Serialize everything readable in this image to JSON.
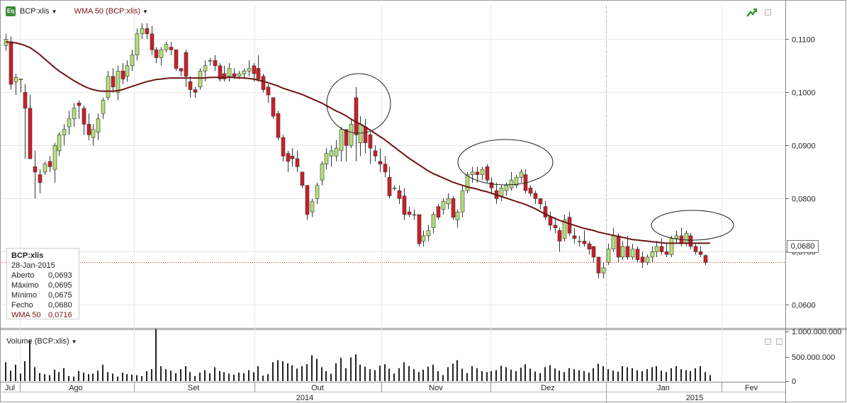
{
  "header": {
    "symbol_label": "BCP:xlis",
    "indicator_label": "WMA 50 (BCP:xlis)",
    "eq_icon_text": "Eq"
  },
  "tooltip": {
    "title": "BCP:xlis",
    "date": "28-Jan-2015",
    "rows": [
      {
        "k": "Aberto",
        "v": "0,0693"
      },
      {
        "k": "Máximo",
        "v": "0,0695"
      },
      {
        "k": "Mínimo",
        "v": "0,0675"
      },
      {
        "k": "Fecho",
        "v": "0,0680"
      },
      {
        "k": "WMA 50",
        "v": "0,0716"
      }
    ]
  },
  "volume_label": "Volume (BCP:xlis)",
  "last_price_label": "0,0680",
  "colors": {
    "up": "#b5e07a",
    "down": "#cc1f26",
    "wma": "#6e1414",
    "grid": "#e6e6e6",
    "last_line": "#cc3333"
  },
  "chart_data": {
    "type": "candlestick",
    "y_ticks": [
      "0,1100",
      "0,1000",
      "0,0900",
      "0,0800",
      "0,0700",
      "0,0600"
    ],
    "ylim": [
      0.0558,
      0.1163
    ],
    "volume_ticks": [
      "1.000.000.000",
      "500.000.000",
      "0"
    ],
    "volume_max": 1000000000,
    "month_labels": [
      "Jul",
      "Ago",
      "Set",
      "Out",
      "Nov",
      "Dez",
      "Jan",
      "Fev"
    ],
    "year_labels": [
      "2014",
      "2015"
    ],
    "last_price": 0.068,
    "candles": [
      [
        0.1088,
        0.111,
        0.1078,
        0.11
      ],
      [
        0.1095,
        0.1105,
        0.1005,
        0.1015
      ],
      [
        0.102,
        0.1035,
        0.0995,
        0.1028
      ],
      [
        0.1025,
        0.1025,
        0.1,
        0.1025
      ],
      [
        0.1,
        0.1015,
        0.0875,
        0.097
      ],
      [
        0.097,
        0.0995,
        0.088,
        0.0875
      ],
      [
        0.086,
        0.089,
        0.08,
        0.085
      ],
      [
        0.0845,
        0.0855,
        0.081,
        0.083
      ],
      [
        0.085,
        0.087,
        0.0845,
        0.0865
      ],
      [
        0.087,
        0.088,
        0.085,
        0.086
      ],
      [
        0.0855,
        0.0905,
        0.083,
        0.09
      ],
      [
        0.089,
        0.0925,
        0.088,
        0.092
      ],
      [
        0.092,
        0.094,
        0.09,
        0.093
      ],
      [
        0.0935,
        0.0965,
        0.092,
        0.095
      ],
      [
        0.095,
        0.098,
        0.0935,
        0.097
      ],
      [
        0.098,
        0.0985,
        0.095,
        0.0975
      ],
      [
        0.097,
        0.0975,
        0.092,
        0.094
      ],
      [
        0.094,
        0.096,
        0.091,
        0.092
      ],
      [
        0.0915,
        0.094,
        0.09,
        0.093
      ],
      [
        0.0925,
        0.096,
        0.091,
        0.095
      ],
      [
        0.096,
        0.099,
        0.095,
        0.0985
      ],
      [
        0.099,
        0.104,
        0.0985,
        0.103
      ],
      [
        0.103,
        0.1045,
        0.1,
        0.101
      ],
      [
        0.1,
        0.105,
        0.0985,
        0.104
      ],
      [
        0.104,
        0.1055,
        0.1015,
        0.1025
      ],
      [
        0.103,
        0.106,
        0.102,
        0.105
      ],
      [
        0.105,
        0.108,
        0.104,
        0.107
      ],
      [
        0.107,
        0.112,
        0.106,
        0.111
      ],
      [
        0.111,
        0.113,
        0.11,
        0.112
      ],
      [
        0.112,
        0.113,
        0.11,
        0.111
      ],
      [
        0.111,
        0.1125,
        0.107,
        0.108
      ],
      [
        0.108,
        0.1085,
        0.1055,
        0.1065
      ],
      [
        0.1065,
        0.1085,
        0.105,
        0.108
      ],
      [
        0.108,
        0.1095,
        0.1075,
        0.109
      ],
      [
        0.1085,
        0.1095,
        0.107,
        0.108
      ],
      [
        0.108,
        0.108,
        0.104,
        0.1045
      ],
      [
        0.1045,
        0.1045,
        0.103,
        0.104
      ],
      [
        0.1075,
        0.108,
        0.101,
        0.103
      ],
      [
        0.102,
        0.103,
        0.099,
        0.1005
      ],
      [
        0.1005,
        0.101,
        0.099,
        0.1
      ],
      [
        0.101,
        0.1045,
        0.1005,
        0.104
      ],
      [
        0.104,
        0.106,
        0.102,
        0.105
      ],
      [
        0.106,
        0.1065,
        0.105,
        0.106
      ],
      [
        0.106,
        0.107,
        0.104,
        0.105
      ],
      [
        0.105,
        0.1055,
        0.102,
        0.1025
      ],
      [
        0.1035,
        0.105,
        0.102,
        0.1025
      ],
      [
        0.103,
        0.1055,
        0.102,
        0.1045
      ],
      [
        0.1035,
        0.1045,
        0.1025,
        0.103
      ],
      [
        0.103,
        0.104,
        0.1025,
        0.1035
      ],
      [
        0.1035,
        0.1045,
        0.1025,
        0.104
      ],
      [
        0.104,
        0.106,
        0.103,
        0.1045
      ],
      [
        0.105,
        0.1055,
        0.102,
        0.1035
      ],
      [
        0.1045,
        0.107,
        0.102,
        0.1025
      ],
      [
        0.103,
        0.1035,
        0.1,
        0.1005
      ],
      [
        0.101,
        0.1015,
        0.098,
        0.0995
      ],
      [
        0.099,
        0.099,
        0.095,
        0.0955
      ],
      [
        0.096,
        0.0965,
        0.091,
        0.0915
      ],
      [
        0.0915,
        0.092,
        0.087,
        0.088
      ],
      [
        0.0885,
        0.089,
        0.085,
        0.087
      ],
      [
        0.088,
        0.0895,
        0.086,
        0.0875
      ],
      [
        0.0875,
        0.089,
        0.085,
        0.086
      ],
      [
        0.085,
        0.085,
        0.082,
        0.0825
      ],
      [
        0.0825,
        0.0825,
        0.076,
        0.077
      ],
      [
        0.0775,
        0.08,
        0.0765,
        0.0795
      ],
      [
        0.08,
        0.083,
        0.079,
        0.0825
      ],
      [
        0.0835,
        0.087,
        0.0825,
        0.0865
      ],
      [
        0.0865,
        0.0895,
        0.0855,
        0.0885
      ],
      [
        0.088,
        0.09,
        0.086,
        0.089
      ],
      [
        0.088,
        0.091,
        0.087,
        0.0895
      ],
      [
        0.089,
        0.0935,
        0.087,
        0.093
      ],
      [
        0.093,
        0.093,
        0.087,
        0.09
      ],
      [
        0.09,
        0.095,
        0.0895,
        0.094
      ],
      [
        0.099,
        0.101,
        0.087,
        0.092
      ],
      [
        0.0905,
        0.0955,
        0.088,
        0.094
      ],
      [
        0.0935,
        0.095,
        0.0885,
        0.0905
      ],
      [
        0.092,
        0.0925,
        0.0865,
        0.0895
      ],
      [
        0.089,
        0.09,
        0.087,
        0.088
      ],
      [
        0.087,
        0.0895,
        0.085,
        0.0865
      ],
      [
        0.0865,
        0.088,
        0.084,
        0.085
      ],
      [
        0.084,
        0.086,
        0.08,
        0.0805
      ],
      [
        0.082,
        0.0825,
        0.0815,
        0.082
      ],
      [
        0.0815,
        0.0825,
        0.079,
        0.08
      ],
      [
        0.0805,
        0.082,
        0.076,
        0.077
      ],
      [
        0.0775,
        0.0785,
        0.0765,
        0.077
      ],
      [
        0.077,
        0.078,
        0.076,
        0.077
      ],
      [
        0.077,
        0.077,
        0.071,
        0.0715
      ],
      [
        0.072,
        0.074,
        0.071,
        0.073
      ],
      [
        0.073,
        0.075,
        0.072,
        0.074
      ],
      [
        0.0745,
        0.0775,
        0.0735,
        0.077
      ],
      [
        0.0785,
        0.079,
        0.076,
        0.0765
      ],
      [
        0.078,
        0.08,
        0.077,
        0.0795
      ],
      [
        0.079,
        0.081,
        0.078,
        0.08
      ],
      [
        0.08,
        0.0805,
        0.076,
        0.0765
      ],
      [
        0.076,
        0.078,
        0.0745,
        0.0775
      ],
      [
        0.0775,
        0.0825,
        0.0765,
        0.0815
      ],
      [
        0.0815,
        0.085,
        0.081,
        0.0845
      ],
      [
        0.0845,
        0.086,
        0.083,
        0.085
      ],
      [
        0.085,
        0.086,
        0.083,
        0.0845
      ],
      [
        0.0845,
        0.086,
        0.0835,
        0.0855
      ],
      [
        0.086,
        0.0865,
        0.083,
        0.0835
      ],
      [
        0.083,
        0.084,
        0.081,
        0.082
      ],
      [
        0.0815,
        0.083,
        0.079,
        0.08
      ],
      [
        0.0805,
        0.0825,
        0.0795,
        0.082
      ],
      [
        0.0815,
        0.083,
        0.0805,
        0.0825
      ],
      [
        0.082,
        0.085,
        0.0815,
        0.0835
      ],
      [
        0.0825,
        0.0845,
        0.082,
        0.084
      ],
      [
        0.084,
        0.0855,
        0.083,
        0.085
      ],
      [
        0.0845,
        0.0855,
        0.081,
        0.0815
      ],
      [
        0.082,
        0.0825,
        0.0805,
        0.081
      ],
      [
        0.081,
        0.0815,
        0.079,
        0.08
      ],
      [
        0.08,
        0.08,
        0.078,
        0.079
      ],
      [
        0.0785,
        0.0795,
        0.076,
        0.0765
      ],
      [
        0.0765,
        0.0775,
        0.074,
        0.075
      ],
      [
        0.075,
        0.0765,
        0.0735,
        0.0745
      ],
      [
        0.074,
        0.0745,
        0.07,
        0.072
      ],
      [
        0.0725,
        0.077,
        0.072,
        0.076
      ],
      [
        0.0765,
        0.0775,
        0.073,
        0.0735
      ],
      [
        0.073,
        0.0745,
        0.0715,
        0.0725
      ],
      [
        0.072,
        0.073,
        0.071,
        0.072
      ],
      [
        0.072,
        0.074,
        0.071,
        0.0715
      ],
      [
        0.0715,
        0.072,
        0.0695,
        0.0705
      ],
      [
        0.071,
        0.071,
        0.068,
        0.069
      ],
      [
        0.069,
        0.069,
        0.065,
        0.066
      ],
      [
        0.066,
        0.068,
        0.065,
        0.067
      ],
      [
        0.068,
        0.0715,
        0.0675,
        0.0705
      ],
      [
        0.0705,
        0.0745,
        0.07,
        0.073
      ],
      [
        0.073,
        0.0735,
        0.068,
        0.069
      ],
      [
        0.069,
        0.072,
        0.0685,
        0.071
      ],
      [
        0.071,
        0.073,
        0.0685,
        0.069
      ],
      [
        0.069,
        0.0715,
        0.0685,
        0.0705
      ],
      [
        0.0705,
        0.071,
        0.068,
        0.0685
      ],
      [
        0.069,
        0.07,
        0.067,
        0.068
      ],
      [
        0.068,
        0.0695,
        0.0675,
        0.069
      ],
      [
        0.069,
        0.071,
        0.068,
        0.07
      ],
      [
        0.07,
        0.072,
        0.069,
        0.071
      ],
      [
        0.071,
        0.0725,
        0.0695,
        0.07
      ],
      [
        0.07,
        0.0715,
        0.069,
        0.0695
      ],
      [
        0.0695,
        0.073,
        0.069,
        0.0725
      ],
      [
        0.0725,
        0.074,
        0.0715,
        0.073
      ],
      [
        0.073,
        0.0745,
        0.071,
        0.0715
      ],
      [
        0.0715,
        0.074,
        0.071,
        0.0735
      ],
      [
        0.073,
        0.0735,
        0.0705,
        0.071
      ],
      [
        0.071,
        0.0715,
        0.0695,
        0.07
      ],
      [
        0.07,
        0.071,
        0.069,
        0.0695
      ],
      [
        0.0693,
        0.0695,
        0.0675,
        0.068
      ]
    ],
    "volumes": [
      380,
      210,
      330,
      150,
      400,
      820,
      280,
      160,
      140,
      120,
      230,
      180,
      260,
      100,
      90,
      200,
      170,
      140,
      150,
      210,
      330,
      180,
      150,
      90,
      170,
      140,
      130,
      120,
      100,
      200,
      240,
      1050,
      300,
      240,
      210,
      160,
      240,
      300,
      180,
      100,
      170,
      220,
      160,
      280,
      200,
      180,
      150,
      130,
      170,
      160,
      220,
      180,
      300,
      110,
      140,
      380,
      420,
      400,
      360,
      320,
      250,
      300,
      340,
      520,
      450,
      280,
      200,
      150,
      360,
      470,
      260,
      480,
      540,
      330,
      290,
      240,
      220,
      310,
      340,
      250,
      150,
      260,
      380,
      300,
      240,
      180,
      230,
      290,
      330,
      200,
      120,
      280,
      350,
      420,
      250,
      160,
      300,
      260,
      200,
      180,
      200,
      220,
      310,
      280,
      230,
      200,
      270,
      340,
      250,
      190,
      160,
      280,
      320,
      250,
      210,
      180,
      260,
      240,
      220,
      200,
      170,
      260,
      350,
      300,
      240,
      210,
      190,
      300,
      280,
      260,
      220,
      200,
      240,
      280,
      300,
      210,
      180,
      260,
      300,
      240,
      220,
      200,
      260,
      300,
      180,
      120
    ],
    "wma50": [
      0.1095,
      0.1094,
      0.1093,
      0.1091,
      0.1088,
      0.1084,
      0.1078,
      0.1071,
      0.1063,
      0.1055,
      0.1047,
      0.104,
      0.1034,
      0.1028,
      0.1022,
      0.1017,
      0.1012,
      0.1008,
      0.1005,
      0.1003,
      0.1002,
      0.1002,
      0.1002,
      0.1003,
      0.1005,
      0.1008,
      0.1011,
      0.1014,
      0.1017,
      0.102,
      0.1022,
      0.1024,
      0.1025,
      0.1026,
      0.1027,
      0.1027,
      0.1027,
      0.1027,
      0.1027,
      0.1027,
      0.1027,
      0.1027,
      0.1028,
      0.1028,
      0.1028,
      0.1028,
      0.1028,
      0.1028,
      0.1027,
      0.1027,
      0.1026,
      0.1025,
      0.1023,
      0.1021,
      0.1018,
      0.1015,
      0.1012,
      0.1008,
      0.1005,
      0.1002,
      0.0999,
      0.0996,
      0.0992,
      0.0988,
      0.0984,
      0.098,
      0.0975,
      0.097,
      0.0965,
      0.0961,
      0.0956,
      0.095,
      0.0945,
      0.094,
      0.0935,
      0.0929,
      0.0923,
      0.0917,
      0.0911,
      0.0904,
      0.0897,
      0.089,
      0.0883,
      0.0876,
      0.087,
      0.0864,
      0.0858,
      0.0852,
      0.0847,
      0.0843,
      0.0839,
      0.0835,
      0.0831,
      0.0828,
      0.0825,
      0.0822,
      0.082,
      0.0818,
      0.0815,
      0.0813,
      0.081,
      0.0807,
      0.0804,
      0.0801,
      0.0798,
      0.0795,
      0.0792,
      0.0789,
      0.0785,
      0.0781,
      0.0776,
      0.0771,
      0.0767,
      0.0763,
      0.0759,
      0.0756,
      0.0753,
      0.075,
      0.0747,
      0.0744,
      0.0742,
      0.074,
      0.0737,
      0.0735,
      0.0733,
      0.0731,
      0.0729,
      0.0727,
      0.0725,
      0.0723,
      0.0722,
      0.0721,
      0.072,
      0.0719,
      0.0718,
      0.0717,
      0.0716,
      0.0716,
      0.0716,
      0.0716,
      0.0716,
      0.0716,
      0.0716,
      0.0716,
      0.0716,
      0.0716
    ]
  }
}
